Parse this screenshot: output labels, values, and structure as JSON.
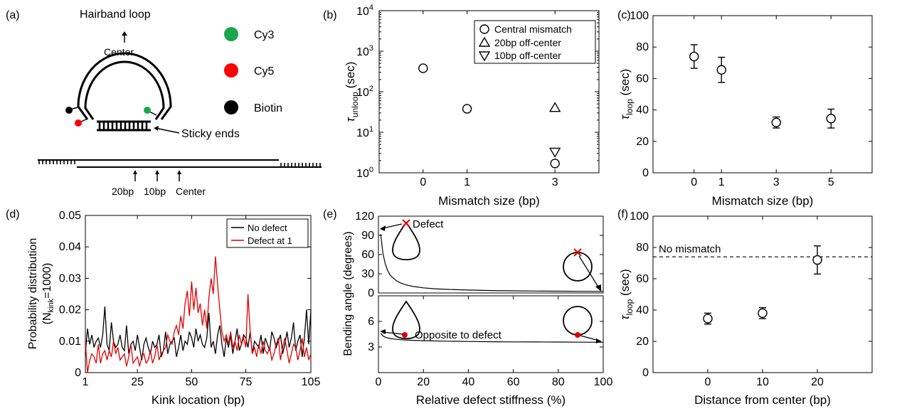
{
  "panel_a": {
    "label": "(a)",
    "title": "Hairband loop",
    "center_label": "Center",
    "sticky_label": "Sticky ends",
    "legend": [
      {
        "name": "Cy3",
        "color": "#1aa64b"
      },
      {
        "name": "Cy5",
        "color": "#ff0000"
      },
      {
        "name": "Biotin",
        "color": "#000000"
      }
    ],
    "positions": [
      "20bp",
      "10bp",
      "Center"
    ]
  },
  "chart_data": [
    {
      "id": "b",
      "label": "(b)",
      "type": "scatter",
      "xlabel": "Mismatch size (bp)",
      "ylabel_main": "τ",
      "ylabel_sub": "unloop",
      "ylabel_unit": " (sec)",
      "yscale": "log",
      "xlim": [
        -1,
        4
      ],
      "ylim": [
        1,
        10000
      ],
      "xticks": [
        0,
        1,
        3
      ],
      "yticks_exp": [
        0,
        1,
        2,
        3,
        4
      ],
      "legend": {
        "placement": "top-right",
        "entries": [
          "Central mismatch",
          "20bp off-center",
          "10bp off-center"
        ]
      },
      "series": [
        {
          "name": "Central mismatch",
          "marker": "circle",
          "points": [
            [
              0,
              380
            ],
            [
              1,
              38
            ],
            [
              3,
              1.7
            ]
          ]
        },
        {
          "name": "20bp off-center",
          "marker": "triangle-up",
          "points": [
            [
              3,
              40
            ]
          ]
        },
        {
          "name": "10bp off-center",
          "marker": "triangle-down",
          "points": [
            [
              3,
              3.3
            ]
          ]
        }
      ]
    },
    {
      "id": "c",
      "label": "(c)",
      "type": "scatter",
      "xlabel": "Mismatch size (bp)",
      "ylabel_main": "τ",
      "ylabel_sub": "loop",
      "ylabel_unit": " (sec)",
      "xlim": [
        -1.5,
        6.5
      ],
      "ylim": [
        0,
        100
      ],
      "xticks": [
        0,
        1,
        3,
        5
      ],
      "yticks": [
        0,
        20,
        40,
        60,
        80,
        100
      ],
      "points": [
        {
          "x": 0,
          "y": 74,
          "err": 7.5
        },
        {
          "x": 1,
          "y": 65.5,
          "err": 8
        },
        {
          "x": 3,
          "y": 32,
          "err": 3.5
        },
        {
          "x": 5,
          "y": 34.5,
          "err": 6
        }
      ]
    },
    {
      "id": "d",
      "label": "(d)",
      "type": "line",
      "xlabel": "Kink location (bp)",
      "ylabel_line1": "Probability distribution",
      "ylabel_line2_main": "(N",
      "ylabel_line2_sub": "kink",
      "ylabel_line2_end": "=1000)",
      "xlim": [
        1,
        105
      ],
      "ylim": [
        0,
        0.05
      ],
      "xticks": [
        1,
        25,
        50,
        75,
        105
      ],
      "yticks": [
        0,
        0.01,
        0.02,
        0.03,
        0.04,
        0.05
      ],
      "legend": {
        "placement": "top-right",
        "entries": [
          "No defect",
          "Defect at 1"
        ]
      },
      "series": [
        {
          "name": "No defect",
          "color": "#000000",
          "values": [
            0.006,
            0.014,
            0.009,
            0.012,
            0.008,
            0.01,
            0.011,
            0.008,
            0.012,
            0.021,
            0.009,
            0.007,
            0.016,
            0.01,
            0.008,
            0.009,
            0.012,
            0.008,
            0.007,
            0.015,
            0.006,
            0.009,
            0.01,
            0.007,
            0.012,
            0.008,
            0.004,
            0.009,
            0.011,
            0.008,
            0.006,
            0.01,
            0.008,
            0.009,
            0.012,
            0.005,
            0.007,
            0.013,
            0.006,
            0.009,
            0.01,
            0.011,
            0.005,
            0.008,
            0.012,
            0.007,
            0.01,
            0.009,
            0.013,
            0.011,
            0.008,
            0.014,
            0.01,
            0.012,
            0.009,
            0.008,
            0.011,
            0.019,
            0.008,
            0.01,
            0.006,
            0.012,
            0.015,
            0.009,
            0.005,
            0.011,
            0.008,
            0.012,
            0.006,
            0.01,
            0.014,
            0.007,
            0.009,
            0.012,
            0.011,
            0.008,
            0.013,
            0.006,
            0.01,
            0.009,
            0.008,
            0.012,
            0.006,
            0.011,
            0.009,
            0.007,
            0.013,
            0.011,
            0.008,
            0.01,
            0.012,
            0.006,
            0.009,
            0.013,
            0.008,
            0.011,
            0.016,
            0.007,
            0.01,
            0.012,
            0.005,
            0.011,
            0.02,
            0.009,
            0.02
          ]
        },
        {
          "name": "Defect at 1",
          "color": "#e00000",
          "values": [
            0.01,
            0.0,
            0.004,
            0.006,
            0.005,
            0.003,
            0.009,
            0.003,
            0.006,
            0.007,
            0.004,
            0.007,
            0.005,
            0.01,
            0.006,
            0.008,
            0.004,
            0.005,
            0.006,
            0.002,
            0.005,
            0.009,
            0.003,
            0.004,
            0.005,
            0.002,
            0.005,
            0.006,
            0.003,
            0.004,
            0.007,
            0.003,
            0.005,
            0.009,
            0.004,
            0.006,
            0.007,
            0.008,
            0.012,
            0.01,
            0.009,
            0.013,
            0.015,
            0.012,
            0.018,
            0.014,
            0.022,
            0.026,
            0.018,
            0.029,
            0.02,
            0.027,
            0.019,
            0.022,
            0.015,
            0.02,
            0.014,
            0.024,
            0.03,
            0.025,
            0.037,
            0.028,
            0.02,
            0.013,
            0.01,
            0.012,
            0.009,
            0.013,
            0.008,
            0.01,
            0.007,
            0.012,
            0.009,
            0.011,
            0.008,
            0.025,
            0.013,
            0.006,
            0.008,
            0.005,
            0.009,
            0.006,
            0.01,
            0.007,
            0.006,
            0.008,
            0.004,
            0.006,
            0.009,
            0.011,
            0.004,
            0.008,
            0.011,
            0.007,
            0.003,
            0.006,
            0.009,
            0.008,
            0.004,
            0.007,
            0.011,
            0.005,
            0.008,
            0.004,
            0.006
          ]
        }
      ]
    },
    {
      "id": "e",
      "label": "(e)",
      "type": "line",
      "xlabel": "Relative defect stiffness (%)",
      "ylabel": "Bending angle (degrees)",
      "xlim": [
        0,
        100
      ],
      "xticks": [
        0,
        20,
        40,
        60,
        80,
        100
      ],
      "annotations": [
        "Defect",
        "Opposite to defect"
      ],
      "subplots": [
        {
          "ylim": [
            0,
            120
          ],
          "yticks": [
            0,
            30,
            60,
            90,
            120
          ],
          "x": [
            1,
            2,
            3,
            4,
            5,
            6,
            8,
            10,
            12,
            15,
            20,
            25,
            30,
            40,
            50,
            60,
            70,
            80,
            90,
            100
          ],
          "y": [
            92,
            62,
            46,
            36,
            29,
            25,
            19,
            15.5,
            13,
            10.5,
            8,
            6.6,
            5.7,
            4.5,
            3.8,
            3.3,
            3.0,
            2.8,
            2.6,
            2.5
          ]
        },
        {
          "ylim": [
            0,
            9
          ],
          "yticks": [
            3,
            6
          ],
          "x": [
            1,
            2,
            3,
            5,
            8,
            10,
            15,
            20,
            30,
            40,
            50,
            60,
            70,
            80,
            90,
            100
          ],
          "y": [
            4.6,
            4.3,
            4.15,
            4.0,
            3.9,
            3.85,
            3.78,
            3.74,
            3.68,
            3.65,
            3.62,
            3.6,
            3.59,
            3.58,
            3.57,
            3.56
          ]
        }
      ]
    },
    {
      "id": "f",
      "label": "(f)",
      "type": "scatter",
      "xlabel": "Distance from center (bp)",
      "ylabel_main": "τ",
      "ylabel_sub": "loop",
      "ylabel_unit": " (sec)",
      "xlim": [
        -10,
        30
      ],
      "ylim": [
        0,
        100
      ],
      "xticks": [
        0,
        10,
        20
      ],
      "yticks": [
        0,
        20,
        40,
        60,
        80,
        100
      ],
      "reference": {
        "label": "No mismatch",
        "y": 74
      },
      "points": [
        {
          "x": 0,
          "y": 34.5,
          "err": 3.5
        },
        {
          "x": 10,
          "y": 38,
          "err": 3.5
        },
        {
          "x": 20,
          "y": 72,
          "err": 9
        }
      ]
    }
  ]
}
